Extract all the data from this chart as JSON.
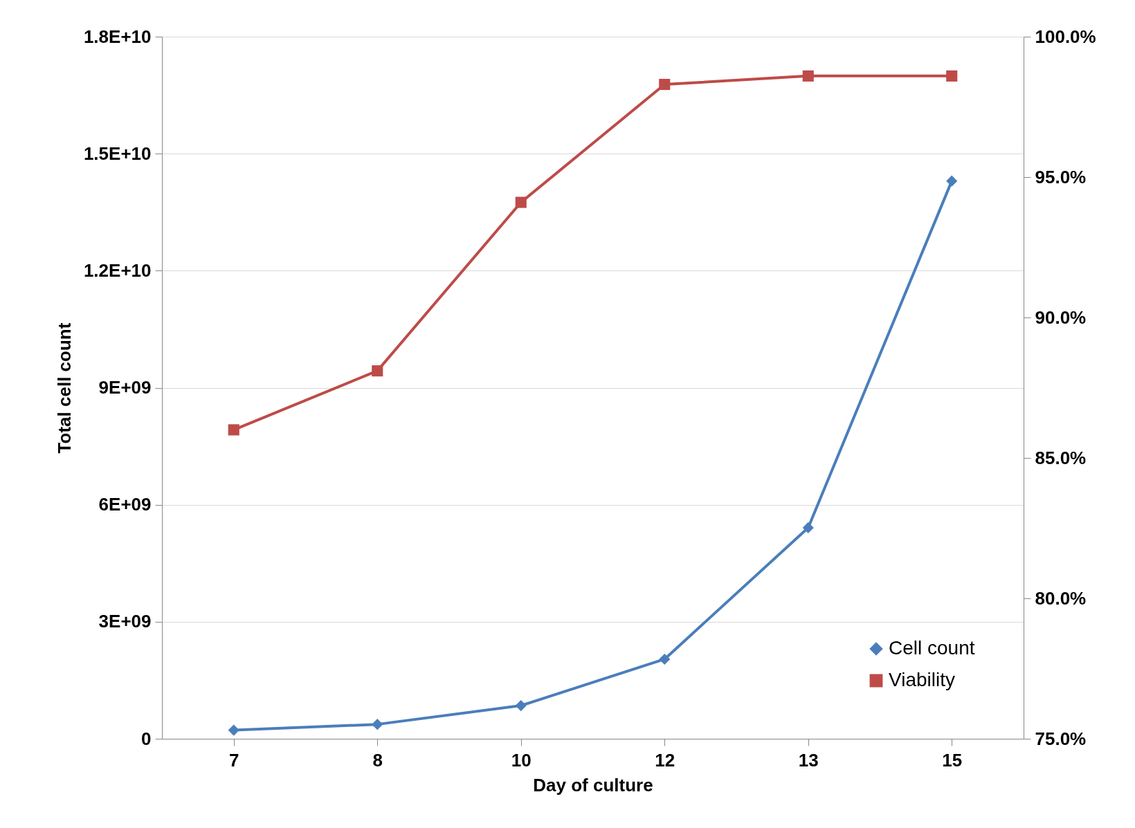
{
  "chart_data": {
    "type": "line",
    "xlabel": "Day of culture",
    "ylabel": "Total cell count",
    "categories": [
      "7",
      "8",
      "10",
      "12",
      "13",
      "15"
    ],
    "series": [
      {
        "name": "Cell count",
        "color": "#4a7ebb",
        "marker": "diamond",
        "values": [
          220000000,
          370000000,
          850000000,
          2040000000,
          5410000000,
          14300000000
        ]
      },
      {
        "name": "Viability",
        "color": "#be4b48",
        "marker": "square",
        "axis": "y2",
        "values": [
          86.0,
          88.1,
          94.1,
          98.3,
          98.6,
          98.6
        ]
      }
    ],
    "ylim": [
      0,
      18000000000
    ],
    "yticks": [
      0,
      {
        "value": 3000000000,
        "label": "3E+09"
      },
      {
        "value": 6000000000,
        "label": "6E+09"
      },
      {
        "value": 9000000000,
        "label": "9E+09"
      },
      {
        "value": 12000000000,
        "label": "1.2E+10"
      },
      {
        "value": 15000000000,
        "label": "1.5E+10"
      },
      {
        "value": 18000000000,
        "label": "1.8E+10"
      }
    ],
    "y2lim": [
      75,
      100
    ],
    "y2ticks": [
      {
        "value": 75,
        "label": "75.0%"
      },
      {
        "value": 80,
        "label": "80.0%"
      },
      {
        "value": 85,
        "label": "85.0%"
      },
      {
        "value": 90,
        "label": "90.0%"
      },
      {
        "value": 95,
        "label": "95.0%"
      },
      {
        "value": 100,
        "label": "100.0%"
      }
    ],
    "grid": "y",
    "legend": "bottom right",
    "line_style": "solid"
  }
}
